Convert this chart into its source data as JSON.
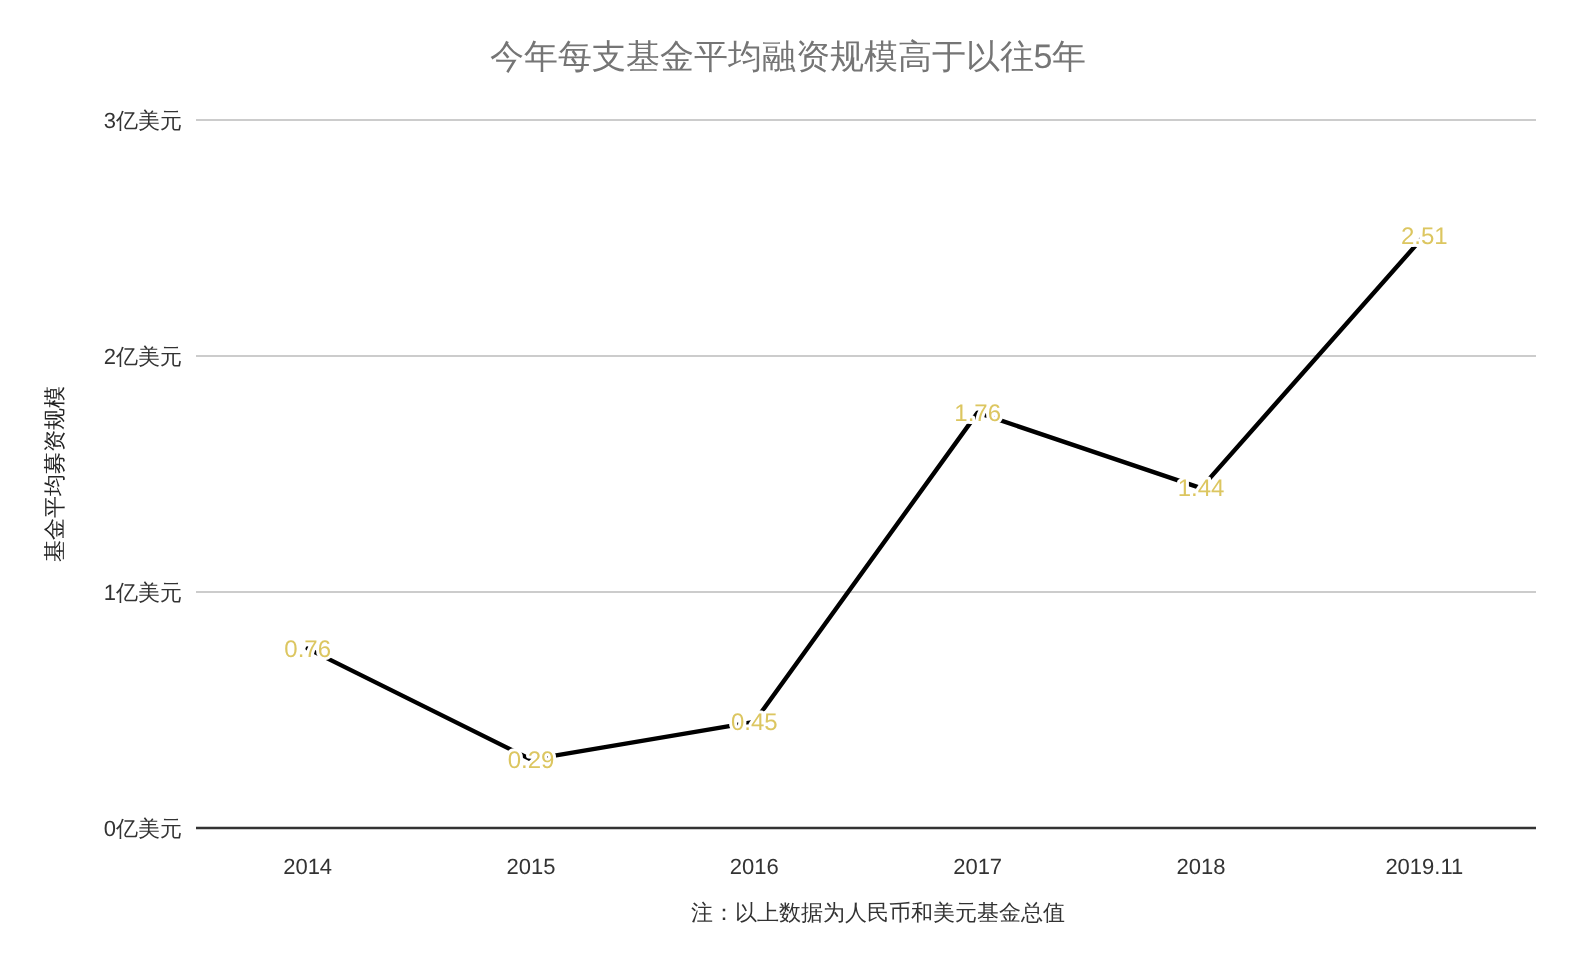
{
  "chart_data": {
    "type": "line",
    "title": "今年每支基金平均融资规模高于以往5年",
    "ylabel": "基金平均募资规模",
    "categories": [
      "2014",
      "2015",
      "2016",
      "2017",
      "2018",
      "2019.11"
    ],
    "values": [
      0.76,
      0.29,
      0.45,
      1.76,
      1.44,
      2.51
    ],
    "color": "#000000",
    "ylim": [
      0,
      3
    ],
    "yticks": [
      {
        "value": 0,
        "label": "0亿美元"
      },
      {
        "value": 1,
        "label": "1亿美元"
      },
      {
        "value": 2,
        "label": "2亿美元"
      },
      {
        "value": 3,
        "label": "3亿美元"
      }
    ],
    "grid": "y",
    "data_labels": true,
    "annotations": [
      "注：以上数据为人民币和美元基金总值"
    ]
  }
}
